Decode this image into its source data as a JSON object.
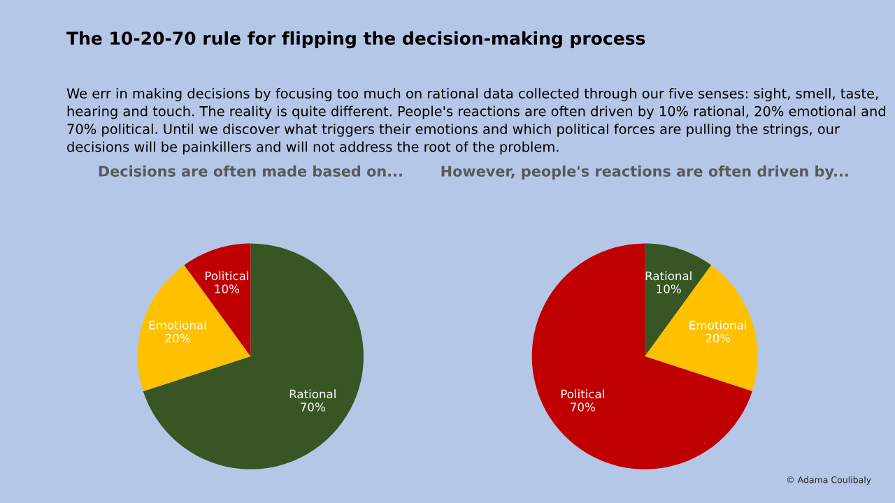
{
  "chart_data": [
    {
      "type": "pie",
      "title": "Decisions are often made based on...",
      "annotations": [
        "The 10-20-70 rule for flipping the decision-making process",
        "We err in making decisions by focusing too much on rational data collected through our five senses: sight, smell, taste, hearing and touch. The reality is quite different. People's reactions are often driven by 10% rational, 20% emotional and 70% political. Until we discover what triggers their emotions and which political forces are pulling the strings, our decisions will be painkillers and will not address the root of the problem."
      ],
      "categories": [
        "Rational",
        "Emotional",
        "Political"
      ],
      "values": [
        70,
        20,
        10
      ],
      "value_labels": [
        "70%",
        "20%",
        "10%"
      ],
      "colors": [
        "#375623",
        "#ffc000",
        "#c00000"
      ]
    },
    {
      "type": "pie",
      "title": "However, people's reactions are often driven by...",
      "annotations": [
        "© Adama Coulibaly"
      ],
      "categories": [
        "Rational",
        "Emotional",
        "Political"
      ],
      "values": [
        10,
        20,
        70
      ],
      "value_labels": [
        "10%",
        "20%",
        "70%"
      ],
      "colors": [
        "#375623",
        "#ffc000",
        "#c00000"
      ]
    }
  ]
}
